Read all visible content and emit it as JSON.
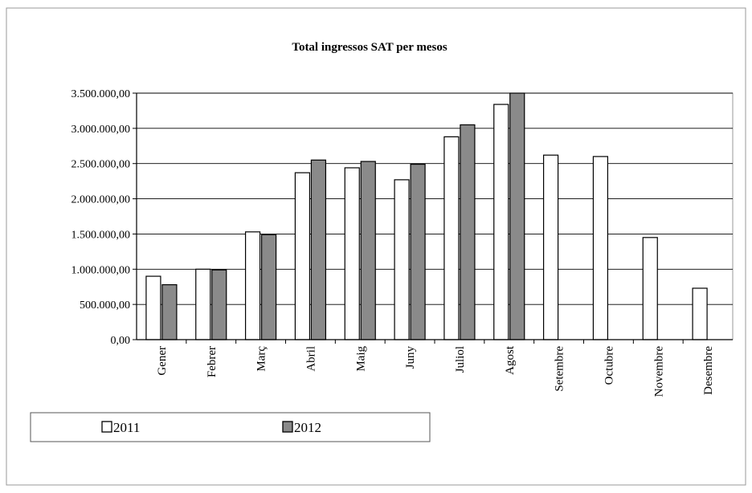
{
  "chart_data": {
    "type": "bar",
    "title": "Total ingressos SAT per mesos",
    "xlabel": "",
    "ylabel": "",
    "ylim": [
      0,
      3500000
    ],
    "yticks": [
      {
        "value": 0,
        "label": "0,00"
      },
      {
        "value": 500000,
        "label": "500.000,00"
      },
      {
        "value": 1000000,
        "label": "1.000.000,00"
      },
      {
        "value": 1500000,
        "label": "1.500.000,00"
      },
      {
        "value": 2000000,
        "label": "2.000.000,00"
      },
      {
        "value": 2500000,
        "label": "2.500.000,00"
      },
      {
        "value": 3000000,
        "label": "3.000.000,00"
      },
      {
        "value": 3500000,
        "label": "3.500.000,00"
      }
    ],
    "categories": [
      "Gener",
      "Febrer",
      "Març",
      "Abril",
      "Maig",
      "Juny",
      "Juliol",
      "Agost",
      "Setembre",
      "Octubre",
      "Novembre",
      "Desembre"
    ],
    "series": [
      {
        "name": "2011",
        "color": "#ffffff",
        "values": [
          900000,
          1000000,
          1530000,
          2370000,
          2440000,
          2270000,
          2880000,
          3340000,
          2620000,
          2600000,
          1450000,
          730000
        ]
      },
      {
        "name": "2012",
        "color": "#8a8a8a",
        "values": [
          780000,
          990000,
          1490000,
          2550000,
          2530000,
          2490000,
          3050000,
          3500000,
          null,
          null,
          null,
          null
        ]
      }
    ],
    "grid": true,
    "legend_position": "bottom-left"
  }
}
